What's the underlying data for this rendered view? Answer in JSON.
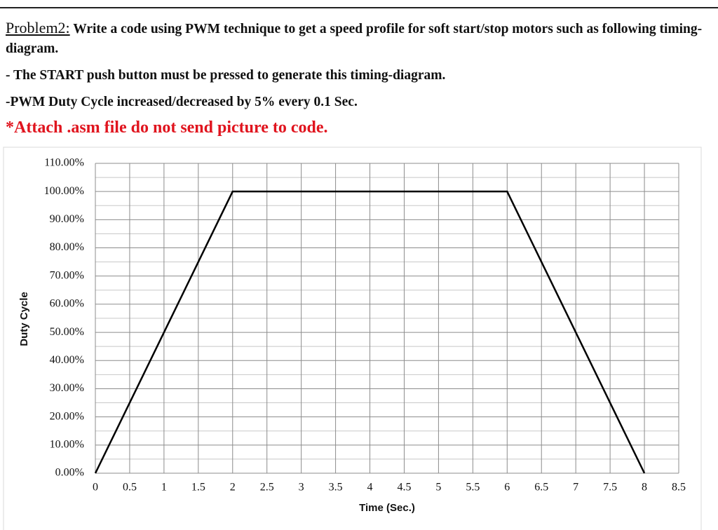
{
  "document": {
    "heading": "Problem2:",
    "intro": "Write a code using PWM technique to get a speed profile for soft start/stop motors such as following timing-diagram.",
    "line1": "- The START push button must be pressed to generate this timing-diagram.",
    "line2": "-PWM Duty Cycle increased/decreased by 5% every 0.1 Sec.",
    "warning": "*Attach .asm file do not send picture to code."
  },
  "chart_data": {
    "type": "line",
    "x_label": "Time (Sec.)",
    "y_label": "Duty Cycle",
    "x": [
      0,
      2,
      6,
      8
    ],
    "values": [
      0,
      100,
      100,
      0
    ],
    "color": "#000000",
    "xlim": [
      0,
      8.5
    ],
    "xticks": [
      0,
      0.5,
      1,
      1.5,
      2,
      2.5,
      3,
      3.5,
      4,
      4.5,
      5,
      5.5,
      6,
      6.5,
      7,
      7.5,
      8,
      8.5
    ],
    "ylim": [
      0,
      110
    ],
    "yticks": [
      {
        "value": 0,
        "label": "0.00%"
      },
      {
        "value": 10,
        "label": "10.00%"
      },
      {
        "value": 20,
        "label": "20.00%"
      },
      {
        "value": 30,
        "label": "30.00%"
      },
      {
        "value": 40,
        "label": "40.00%"
      },
      {
        "value": 50,
        "label": "50.00%"
      },
      {
        "value": 60,
        "label": "60.00%"
      },
      {
        "value": 70,
        "label": "70.00%"
      },
      {
        "value": 80,
        "label": "80.00%"
      },
      {
        "value": 90,
        "label": "90.00%"
      },
      {
        "value": 100,
        "label": "100.00%"
      },
      {
        "value": 110,
        "label": "110.00%"
      }
    ],
    "y_minor_ticks": [
      5,
      15,
      25,
      35,
      45,
      55,
      65,
      75,
      85,
      95,
      105
    ],
    "grid": true
  }
}
